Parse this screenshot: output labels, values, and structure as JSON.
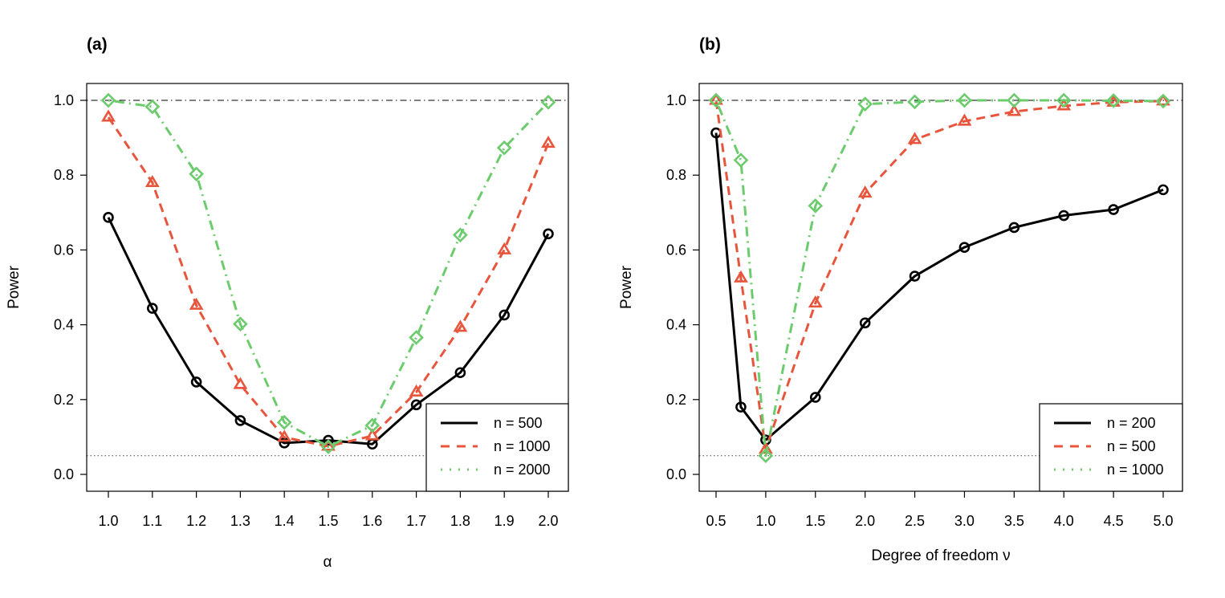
{
  "chart_data": [
    {
      "panel": "(a)",
      "type": "line",
      "xlabel": "α",
      "ylabel": "Power",
      "xlim": [
        1.0,
        2.0
      ],
      "ylim": [
        0.0,
        1.0
      ],
      "xticks": [
        "1.0",
        "1.1",
        "1.2",
        "1.3",
        "1.4",
        "1.5",
        "1.6",
        "1.7",
        "1.8",
        "1.9",
        "2.0"
      ],
      "yticks": [
        "0.0",
        "0.2",
        "0.4",
        "0.6",
        "0.8",
        "1.0"
      ],
      "reference_lines": [
        {
          "y": 1.0,
          "style": "dotdash"
        },
        {
          "y": 0.05,
          "style": "dotted"
        }
      ],
      "legend_position": "bottom-right",
      "series": [
        {
          "name": "n = 500",
          "color": "#000000",
          "line": "solid",
          "marker": "circle",
          "x": [
            1.0,
            1.1,
            1.2,
            1.3,
            1.4,
            1.5,
            1.6,
            1.7,
            1.8,
            1.9,
            2.0
          ],
          "y": [
            0.687,
            0.444,
            0.247,
            0.144,
            0.084,
            0.091,
            0.081,
            0.186,
            0.272,
            0.426,
            0.643
          ]
        },
        {
          "name": "n = 1000",
          "color": "#E8553D",
          "line": "dashed",
          "marker": "triangle",
          "x": [
            1.0,
            1.1,
            1.2,
            1.3,
            1.4,
            1.5,
            1.6,
            1.7,
            1.8,
            1.9,
            2.0
          ],
          "y": [
            0.955,
            0.78,
            0.452,
            0.24,
            0.099,
            0.075,
            0.103,
            0.22,
            0.393,
            0.6,
            0.885
          ]
        },
        {
          "name": "n = 2000",
          "color": "#6CCB6C",
          "line": "dotdash",
          "marker": "diamond",
          "x": [
            1.0,
            1.1,
            1.2,
            1.3,
            1.4,
            1.5,
            1.6,
            1.7,
            1.8,
            1.9,
            2.0
          ],
          "y": [
            1.0,
            0.983,
            0.803,
            0.402,
            0.139,
            0.074,
            0.131,
            0.366,
            0.64,
            0.873,
            0.995
          ]
        }
      ]
    },
    {
      "panel": "(b)",
      "type": "line",
      "xlabel": "Degree of freedom ν",
      "ylabel": "Power",
      "xlim": [
        0.5,
        5.0
      ],
      "ylim": [
        0.0,
        1.0
      ],
      "xticks": [
        "0.5",
        "1.0",
        "1.5",
        "2.0",
        "2.5",
        "3.0",
        "3.5",
        "4.0",
        "4.5",
        "5.0"
      ],
      "yticks": [
        "0.0",
        "0.2",
        "0.4",
        "0.6",
        "0.8",
        "1.0"
      ],
      "reference_lines": [
        {
          "y": 1.0,
          "style": "dotdash"
        },
        {
          "y": 0.05,
          "style": "dotted"
        }
      ],
      "legend_position": "bottom-right",
      "series": [
        {
          "name": "n = 200",
          "color": "#000000",
          "line": "solid",
          "marker": "circle",
          "x": [
            0.5,
            0.75,
            1.0,
            1.5,
            2.0,
            2.5,
            3.0,
            3.5,
            4.0,
            4.5,
            5.0
          ],
          "y": [
            0.913,
            0.18,
            0.092,
            0.206,
            0.405,
            0.53,
            0.607,
            0.66,
            0.692,
            0.708,
            0.761
          ]
        },
        {
          "name": "n = 500",
          "color": "#E8553D",
          "line": "dashed",
          "marker": "triangle",
          "x": [
            0.5,
            0.75,
            1.0,
            1.5,
            2.0,
            2.5,
            3.0,
            3.5,
            4.0,
            4.5,
            5.0
          ],
          "y": [
            1.0,
            0.525,
            0.067,
            0.458,
            0.752,
            0.895,
            0.944,
            0.97,
            0.985,
            0.995,
            0.998
          ]
        },
        {
          "name": "n = 1000",
          "color": "#6CCB6C",
          "line": "dotdash",
          "marker": "diamond",
          "x": [
            0.5,
            0.75,
            1.0,
            1.5,
            2.0,
            2.5,
            3.0,
            3.5,
            4.0,
            4.5,
            5.0
          ],
          "y": [
            1.0,
            0.84,
            0.05,
            0.718,
            0.99,
            0.996,
            1.0,
            1.0,
            1.0,
            0.999,
            0.998
          ]
        }
      ]
    }
  ]
}
